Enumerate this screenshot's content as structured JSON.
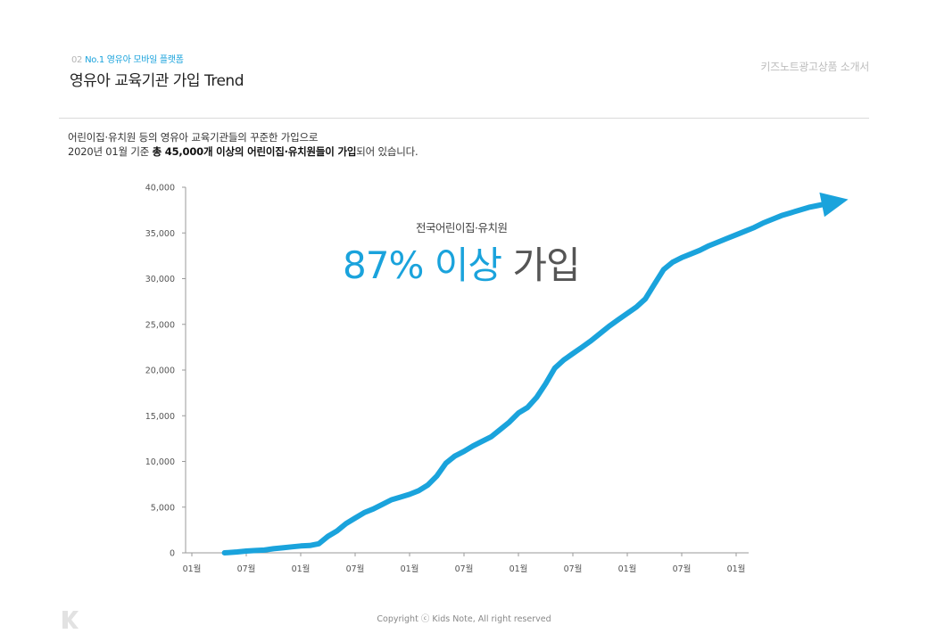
{
  "header": {
    "section_number": "02",
    "section_label": "No.1 영유아 모바일 플랫폼",
    "title": "영유아 교육기관 가입 Trend",
    "document_name": "키즈노트광고상품 소개서"
  },
  "intro": {
    "line1": "어린이집·유치원 등의 영유아 교육기관들의 꾸준한 가입으로",
    "line2_prefix": "2020년 01월 기준 ",
    "line2_bold": "총 45,000개 이상의 어린이집·유치원들이 가입",
    "line2_suffix": "되어 있습니다."
  },
  "callout": {
    "subtitle": "전국어린이집·유치원",
    "highlight": "87% 이상",
    "rest": "가입"
  },
  "footer": {
    "copyright": "Copyright ⓒ Kids Note, All right reserved"
  },
  "colors": {
    "accent": "#1aa3dc",
    "axis": "#9a9a9a",
    "tick_text": "#555555"
  },
  "chart_data": {
    "type": "line",
    "title": "",
    "xlabel": "",
    "ylabel": "",
    "ylim": [
      0,
      40000
    ],
    "yticks": [
      0,
      5000,
      10000,
      15000,
      20000,
      25000,
      30000,
      35000,
      40000
    ],
    "ytick_labels": [
      "0",
      "5,000",
      "10,000",
      "15,000",
      "20,000",
      "25,000",
      "30,000",
      "35,000",
      "40,000"
    ],
    "xtick_labels": [
      "01월",
      "07월",
      "01월",
      "07월",
      "01월",
      "07월",
      "01월",
      "07월",
      "01월",
      "07월",
      "01월"
    ],
    "grid": false,
    "series": [
      {
        "color": "#1aa3dc",
        "ends_with_arrow": true,
        "x": [
          3.6,
          5,
          6,
          7,
          8,
          9,
          10,
          11,
          12,
          13,
          14,
          15,
          16,
          17,
          18,
          19,
          20,
          21,
          22,
          23,
          24,
          25,
          26,
          27,
          28,
          29,
          30,
          31,
          32,
          33,
          34,
          35,
          36,
          37,
          38,
          39,
          40,
          41,
          42,
          43,
          44,
          45,
          46,
          47,
          48,
          49,
          50,
          51,
          52,
          53,
          54,
          55,
          56,
          57,
          58,
          59,
          60,
          61,
          62,
          63,
          64,
          65,
          66,
          67,
          68,
          69,
          70,
          71
        ],
        "values": [
          0,
          100,
          200,
          250,
          300,
          450,
          550,
          650,
          750,
          800,
          1000,
          1800,
          2400,
          3200,
          3800,
          4400,
          4800,
          5300,
          5800,
          6100,
          6400,
          6800,
          7400,
          8400,
          9800,
          10600,
          11100,
          11700,
          12200,
          12700,
          13500,
          14300,
          15300,
          15900,
          17000,
          18500,
          20200,
          21100,
          21800,
          22500,
          23200,
          24000,
          24800,
          25500,
          26200,
          26900,
          27800,
          29400,
          31000,
          31800,
          32300,
          32700,
          33100,
          33600,
          34000,
          34400,
          34800,
          35200,
          35600,
          36100,
          36500,
          36900,
          37200,
          37500,
          37800,
          38000,
          38200,
          38400
        ]
      }
    ],
    "x_note": "x is months elapsed since the first 01월 tick; tick spacing is 6 months"
  }
}
